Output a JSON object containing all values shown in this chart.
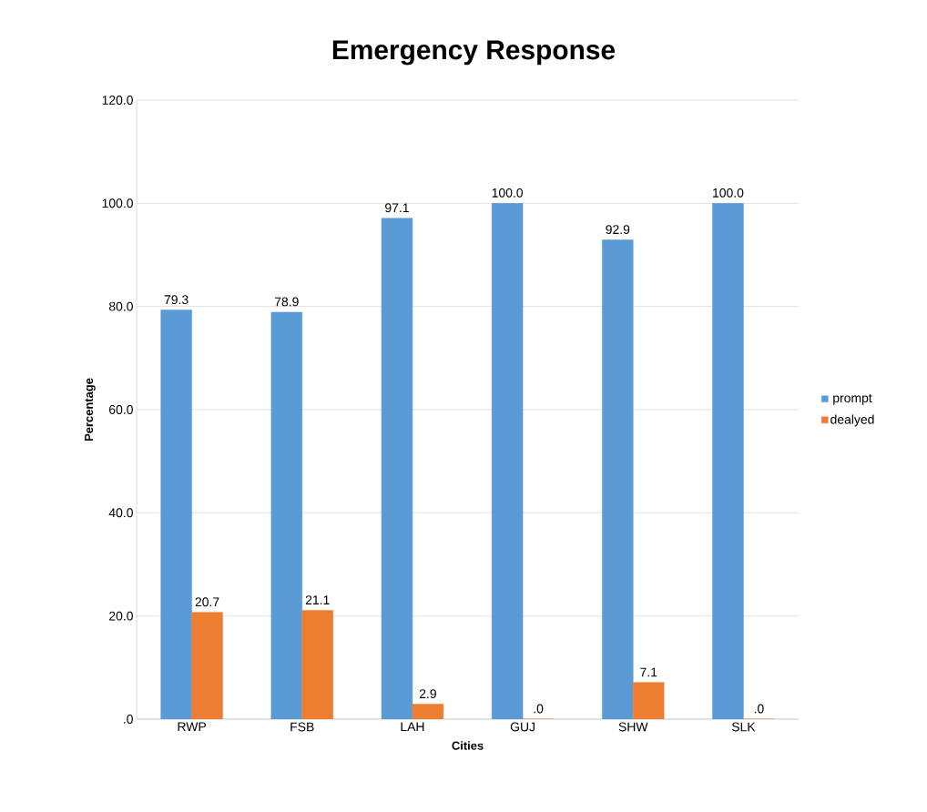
{
  "chart_data": {
    "type": "bar",
    "title": "Emergency Response",
    "xlabel": "Cities",
    "ylabel": "Percentage",
    "categories": [
      "RWP",
      "FSB",
      "LAH",
      "GUJ",
      "SHW",
      "SLK"
    ],
    "series": [
      {
        "name": "prompt",
        "color": "#5b9bd5",
        "values": [
          79.3,
          78.9,
          97.1,
          100.0,
          92.9,
          100.0
        ],
        "value_labels": [
          "79.3",
          "78.9",
          "97.1",
          "100.0",
          "92.9",
          "100.0"
        ]
      },
      {
        "name": "dealyed",
        "color": "#ed7d31",
        "values": [
          20.7,
          21.1,
          2.9,
          0,
          7.1,
          0
        ],
        "value_labels": [
          "20.7",
          "21.1",
          "2.9",
          ".0",
          "7.1",
          ".0"
        ]
      }
    ],
    "ylim": [
      0,
      120
    ],
    "yticks": [
      {
        "value": 0,
        "label": ".0"
      },
      {
        "value": 20,
        "label": "20.0"
      },
      {
        "value": 40,
        "label": "40.0"
      },
      {
        "value": 60,
        "label": "60.0"
      },
      {
        "value": 80,
        "label": "80.0"
      },
      {
        "value": 100,
        "label": "100.0"
      },
      {
        "value": 120,
        "label": "120.0"
      }
    ],
    "grid": "y",
    "legend": "right"
  }
}
